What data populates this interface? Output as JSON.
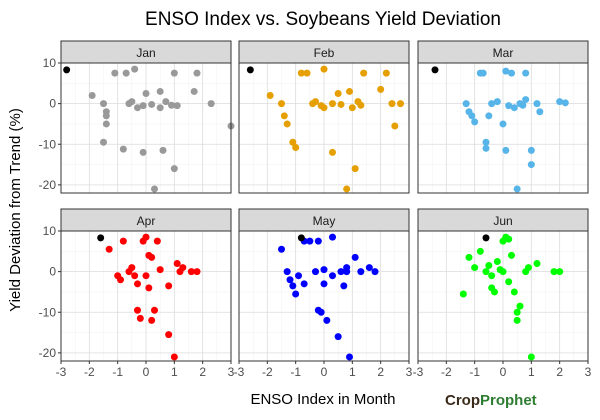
{
  "chart_data": {
    "type": "scatter",
    "title": "ENSO Index vs. Soybeans Yield Deviation",
    "xlabel": "ENSO Index in Month",
    "ylabel": "Yield Deviation from Trend (%)",
    "xlim": [
      -3,
      3
    ],
    "ylim": [
      -22,
      10
    ],
    "xticks": [
      -3,
      -2,
      -1,
      0,
      1,
      2,
      3
    ],
    "yticks": [
      -20,
      -10,
      0,
      10
    ],
    "grid": true,
    "legend": "none",
    "highlight_color": "#000000",
    "panels": [
      {
        "month": "Jan",
        "color": "#999999",
        "highlight": [
          -2.8,
          8.3
        ],
        "points": [
          [
            -1.9,
            2
          ],
          [
            -1.5,
            0
          ],
          [
            -1.4,
            -2
          ],
          [
            -1.4,
            -3
          ],
          [
            -1.4,
            -5
          ],
          [
            -1.5,
            -9.5
          ],
          [
            -1.1,
            7.5
          ],
          [
            -0.8,
            -11.2
          ],
          [
            -0.7,
            7.5
          ],
          [
            -0.6,
            0
          ],
          [
            -0.5,
            0.5
          ],
          [
            -0.4,
            8.5
          ],
          [
            -0.3,
            -1
          ],
          [
            -0.1,
            -0.5
          ],
          [
            -0.1,
            -12
          ],
          [
            0,
            2.5
          ],
          [
            0.2,
            -0.2
          ],
          [
            0.3,
            -21
          ],
          [
            0.5,
            3
          ],
          [
            0.5,
            -1
          ],
          [
            0.6,
            -11.5
          ],
          [
            0.7,
            0.5
          ],
          [
            0.9,
            -0.4
          ],
          [
            1.0,
            7.5
          ],
          [
            1.0,
            -16
          ],
          [
            1.1,
            -0.5
          ],
          [
            1.7,
            3
          ],
          [
            1.8,
            7.5
          ],
          [
            2.3,
            0
          ],
          [
            3.0,
            -5.5
          ]
        ]
      },
      {
        "month": "Feb",
        "color": "#E69F00",
        "highlight": [
          -2.6,
          8.3
        ],
        "points": [
          [
            -1.9,
            2
          ],
          [
            -1.5,
            0
          ],
          [
            -1.4,
            -3
          ],
          [
            -1.3,
            -5
          ],
          [
            -1.1,
            -9.5
          ],
          [
            -1.0,
            -10.8
          ],
          [
            -0.8,
            7.5
          ],
          [
            -0.6,
            7.5
          ],
          [
            -0.4,
            0
          ],
          [
            -0.3,
            0.5
          ],
          [
            -0.1,
            -0.5
          ],
          [
            0,
            8.5
          ],
          [
            0,
            -1
          ],
          [
            0.3,
            0
          ],
          [
            0.3,
            -12
          ],
          [
            0.5,
            2.5
          ],
          [
            0.6,
            -0.2
          ],
          [
            0.8,
            -21
          ],
          [
            0.9,
            3
          ],
          [
            1.0,
            -1
          ],
          [
            1.1,
            -16
          ],
          [
            1.2,
            0.5
          ],
          [
            1.3,
            -0.4
          ],
          [
            1.4,
            7.5
          ],
          [
            2.0,
            3.5
          ],
          [
            2.2,
            7.5
          ],
          [
            2.4,
            0
          ],
          [
            2.5,
            -5.5
          ],
          [
            2.7,
            0
          ]
        ]
      },
      {
        "month": "Mar",
        "color": "#56B4E9",
        "highlight": [
          -2.4,
          8.3
        ],
        "points": [
          [
            -1.3,
            0
          ],
          [
            -1.2,
            -2
          ],
          [
            -1.1,
            -3
          ],
          [
            -1.0,
            -4.5
          ],
          [
            -0.8,
            7.5
          ],
          [
            -0.7,
            7.5
          ],
          [
            -0.6,
            -9.5
          ],
          [
            -0.6,
            -11
          ],
          [
            -0.5,
            -3
          ],
          [
            -0.4,
            0
          ],
          [
            -0.2,
            0.5
          ],
          [
            0,
            -5
          ],
          [
            0.1,
            8
          ],
          [
            0.1,
            -11.5
          ],
          [
            0.2,
            -0.5
          ],
          [
            0.3,
            7.5
          ],
          [
            0.4,
            -1
          ],
          [
            0.5,
            -21
          ],
          [
            0.6,
            0
          ],
          [
            0.7,
            -0.4
          ],
          [
            0.8,
            1
          ],
          [
            0.8,
            7.5
          ],
          [
            1.0,
            -11.5
          ],
          [
            1.0,
            -15
          ],
          [
            1.2,
            0
          ],
          [
            1.3,
            -2
          ],
          [
            2.0,
            0.5
          ],
          [
            2.2,
            0.2
          ]
        ]
      },
      {
        "month": "Apr",
        "color": "#FF0000",
        "highlight": [
          -1.6,
          8.3
        ],
        "points": [
          [
            -1.3,
            5.5
          ],
          [
            -1.0,
            -1
          ],
          [
            -0.9,
            -2
          ],
          [
            -0.8,
            7.5
          ],
          [
            -0.6,
            0
          ],
          [
            -0.5,
            1
          ],
          [
            -0.4,
            -1
          ],
          [
            -0.3,
            -3
          ],
          [
            -0.3,
            -9.5
          ],
          [
            -0.2,
            -11.5
          ],
          [
            -0.1,
            7.5
          ],
          [
            0,
            8.5
          ],
          [
            0,
            -1
          ],
          [
            0.1,
            4
          ],
          [
            0.1,
            -4
          ],
          [
            0.2,
            3.5
          ],
          [
            0.2,
            -12
          ],
          [
            0.3,
            -9.5
          ],
          [
            0.4,
            7.5
          ],
          [
            0.5,
            0.5
          ],
          [
            0.8,
            -3.5
          ],
          [
            0.8,
            -15.5
          ],
          [
            1.0,
            -21
          ],
          [
            1.1,
            2
          ],
          [
            1.2,
            0
          ],
          [
            1.3,
            1
          ],
          [
            1.6,
            0
          ],
          [
            1.8,
            0
          ]
        ]
      },
      {
        "month": "May",
        "color": "#0000FF",
        "highlight": [
          -0.8,
          8.3
        ],
        "points": [
          [
            -1.5,
            5.5
          ],
          [
            -1.3,
            0
          ],
          [
            -1.2,
            -2
          ],
          [
            -1.1,
            -3.5
          ],
          [
            -1.0,
            -5.5
          ],
          [
            -0.9,
            -1
          ],
          [
            -0.7,
            7.5
          ],
          [
            -0.7,
            -3
          ],
          [
            -0.5,
            7.5
          ],
          [
            -0.3,
            0
          ],
          [
            -0.2,
            7.5
          ],
          [
            -0.2,
            -9.5
          ],
          [
            -0.1,
            -10
          ],
          [
            0,
            0.5
          ],
          [
            0,
            -3
          ],
          [
            0.1,
            -12
          ],
          [
            0.3,
            8.5
          ],
          [
            0.3,
            -1
          ],
          [
            0.5,
            -16
          ],
          [
            0.6,
            0
          ],
          [
            0.7,
            -3.5
          ],
          [
            0.8,
            1
          ],
          [
            0.8,
            0
          ],
          [
            0.9,
            -21
          ],
          [
            1.1,
            3.5
          ],
          [
            1.3,
            0
          ],
          [
            1.6,
            1
          ],
          [
            1.8,
            0
          ]
        ]
      },
      {
        "month": "Jun",
        "color": "#00FF00",
        "highlight": [
          -0.6,
          8.3
        ],
        "points": [
          [
            -1.4,
            -5.5
          ],
          [
            -1.2,
            3.5
          ],
          [
            -1.0,
            1
          ],
          [
            -0.8,
            5
          ],
          [
            -0.6,
            0
          ],
          [
            -0.5,
            1.5
          ],
          [
            -0.4,
            -1
          ],
          [
            -0.4,
            -4
          ],
          [
            -0.3,
            -5
          ],
          [
            -0.2,
            2.5
          ],
          [
            -0.1,
            0.5
          ],
          [
            0,
            7.5
          ],
          [
            0,
            0
          ],
          [
            0.1,
            8.5
          ],
          [
            0.2,
            8
          ],
          [
            0.2,
            -2.5
          ],
          [
            0.3,
            4
          ],
          [
            0.4,
            -5
          ],
          [
            0.5,
            -10
          ],
          [
            0.5,
            -12
          ],
          [
            0.6,
            -8.5
          ],
          [
            0.8,
            0
          ],
          [
            0.9,
            1
          ],
          [
            1.0,
            -21
          ],
          [
            1.2,
            2
          ],
          [
            1.8,
            0
          ],
          [
            2.0,
            0
          ]
        ]
      }
    ]
  },
  "watermark": {
    "part1": "Crop",
    "part2": "Prophet"
  }
}
